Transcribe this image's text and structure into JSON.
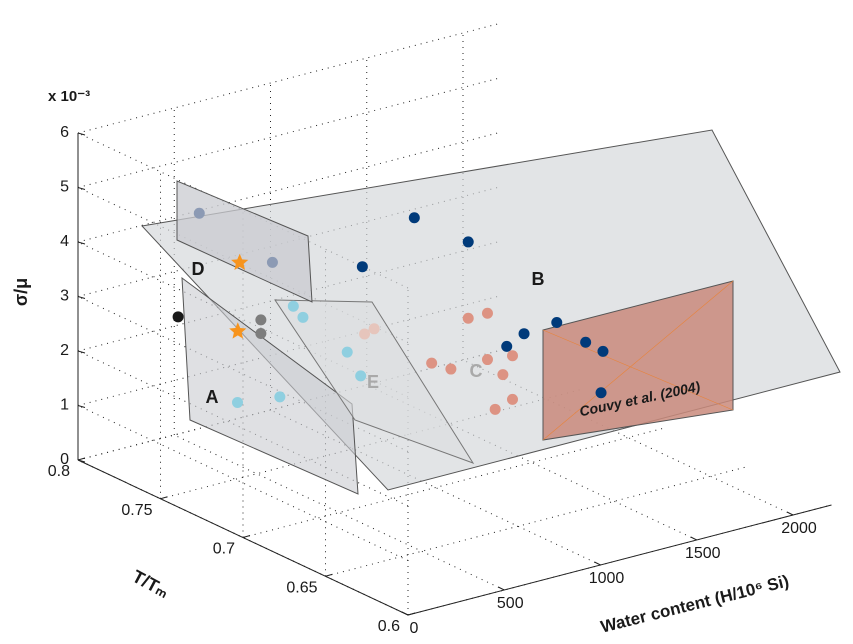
{
  "chart_data": {
    "type": "scatter3d",
    "xlabel": "Water content (H/10⁶ Si)",
    "ylabel": "T/Tₘ",
    "zlabel": "σ/μ",
    "zmultiplier": "x 10⁻³",
    "xlim": [
      0,
      2200
    ],
    "xticks": [
      0,
      500,
      1000,
      1500,
      2000
    ],
    "ylim": [
      0.6,
      0.8
    ],
    "yticks": [
      0.6,
      0.65,
      0.7,
      0.75,
      0.8
    ],
    "zlim": [
      0,
      6
    ],
    "zticks": [
      0,
      1,
      2,
      3,
      4,
      5,
      6
    ],
    "grid": true,
    "annotations": [
      "A",
      "B",
      "C",
      "D",
      "E",
      "Couvy et al. (2004)"
    ],
    "series": [
      {
        "color": "#003a7a",
        "marker": "circle",
        "x": [
          890,
          1170,
          620,
          1630,
          1460,
          1370,
          1780,
          1870,
          1860
        ],
        "y": [
          0.7,
          0.7,
          0.7,
          0.7,
          0.7,
          0.7,
          0.7,
          0.7,
          0.7
        ],
        "values": [
          5.05,
          4.35,
          4.4,
          2.45,
          2.4,
          2.25,
          1.95,
          1.7,
          0.95
        ]
      },
      {
        "color": "#dd9383",
        "marker": "circle",
        "x": [
          1170,
          1270,
          980,
          1080,
          1270,
          1400,
          1350,
          1400,
          1310
        ],
        "y": [
          0.7,
          0.7,
          0.7,
          0.7,
          0.7,
          0.7,
          0.7,
          0.7,
          0.7
        ],
        "values": [
          2.95,
          2.95,
          2.3,
          2.1,
          2.1,
          2.05,
          1.75,
          1.25,
          1.15
        ]
      },
      {
        "color": "#e6c5bc",
        "marker": "circle",
        "x": [
          1060,
          1110
        ],
        "y": [
          0.75,
          0.75
        ],
        "values": [
          2.05,
          2.1
        ]
      },
      {
        "color": "#8fcfe0",
        "marker": "circle",
        "x": [
          690,
          740,
          970,
          1040,
          620,
          400
        ],
        "y": [
          0.75,
          0.75,
          0.75,
          0.75,
          0.75,
          0.75
        ],
        "values": [
          2.9,
          2.65,
          1.8,
          1.3,
          1.3,
          1.4
        ]
      },
      {
        "color": "#8c9ab4",
        "marker": "circle",
        "x": [
          630,
          1010
        ],
        "y": [
          0.8,
          0.8
        ],
        "values": [
          3.95,
          2.7
        ]
      },
      {
        "color": "#7d7d7d",
        "marker": "circle",
        "x": [
          950,
          950
        ],
        "y": [
          0.8,
          0.8
        ],
        "values": [
          1.7,
          1.45
        ]
      },
      {
        "color": "#1a1a1a",
        "marker": "circle",
        "x": [
          520
        ],
        "y": [
          0.8
        ],
        "values": [
          2.15
        ]
      },
      {
        "color": "#f7941d",
        "marker": "star",
        "x": [
          840,
          830
        ],
        "y": [
          0.8,
          0.8
        ],
        "values": [
          2.85,
          1.6
        ]
      }
    ]
  }
}
